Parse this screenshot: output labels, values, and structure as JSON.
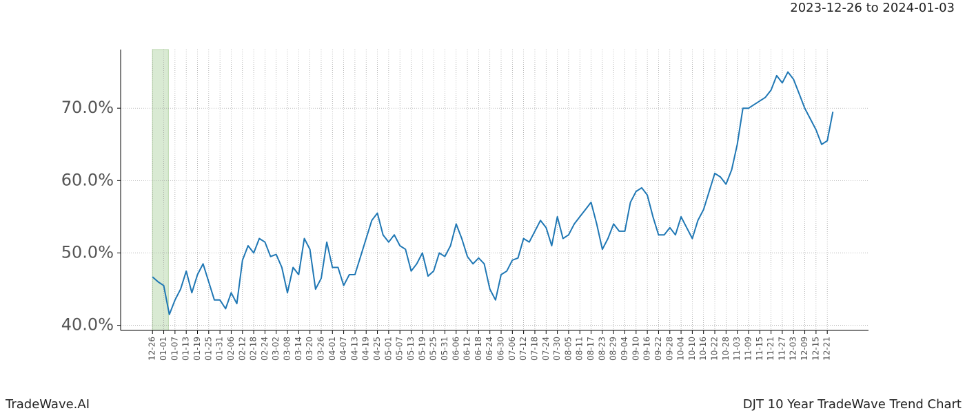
{
  "chart_data": {
    "type": "line",
    "subtitle": "2023-12-26 to 2024-01-03",
    "footer_left": "TradeWave.AI",
    "title": "DJT 10 Year TradeWave Trend Chart",
    "highlight_x": [
      0,
      8.5
    ],
    "highlight_color": "#d9ead3",
    "grid": true,
    "xlim": [
      -17,
      382
    ],
    "ylim": [
      39.3,
      78.1
    ],
    "yticks": [
      {
        "value": 40,
        "label": "40.0%"
      },
      {
        "value": 50,
        "label": "50.0%"
      },
      {
        "value": 60,
        "label": "60.0%"
      },
      {
        "value": 70,
        "label": "70.0%"
      }
    ],
    "xticks": [
      {
        "value": 0,
        "label": "12-26"
      },
      {
        "value": 6,
        "label": "01-01"
      },
      {
        "value": 12,
        "label": "01-07"
      },
      {
        "value": 18,
        "label": "01-13"
      },
      {
        "value": 24,
        "label": "01-19"
      },
      {
        "value": 30,
        "label": "01-25"
      },
      {
        "value": 36,
        "label": "01-31"
      },
      {
        "value": 42,
        "label": "02-06"
      },
      {
        "value": 48,
        "label": "02-12"
      },
      {
        "value": 54,
        "label": "02-18"
      },
      {
        "value": 60,
        "label": "02-24"
      },
      {
        "value": 66,
        "label": "03-02"
      },
      {
        "value": 72,
        "label": "03-08"
      },
      {
        "value": 78,
        "label": "03-14"
      },
      {
        "value": 84,
        "label": "03-20"
      },
      {
        "value": 90,
        "label": "03-26"
      },
      {
        "value": 96,
        "label": "04-01"
      },
      {
        "value": 102,
        "label": "04-07"
      },
      {
        "value": 108,
        "label": "04-13"
      },
      {
        "value": 114,
        "label": "04-19"
      },
      {
        "value": 120,
        "label": "04-25"
      },
      {
        "value": 126,
        "label": "05-01"
      },
      {
        "value": 132,
        "label": "05-07"
      },
      {
        "value": 138,
        "label": "05-13"
      },
      {
        "value": 144,
        "label": "05-19"
      },
      {
        "value": 150,
        "label": "05-25"
      },
      {
        "value": 156,
        "label": "05-31"
      },
      {
        "value": 162,
        "label": "06-06"
      },
      {
        "value": 168,
        "label": "06-12"
      },
      {
        "value": 174,
        "label": "06-18"
      },
      {
        "value": 180,
        "label": "06-24"
      },
      {
        "value": 186,
        "label": "06-30"
      },
      {
        "value": 192,
        "label": "07-06"
      },
      {
        "value": 198,
        "label": "07-12"
      },
      {
        "value": 204,
        "label": "07-18"
      },
      {
        "value": 210,
        "label": "07-24"
      },
      {
        "value": 216,
        "label": "07-30"
      },
      {
        "value": 222,
        "label": "08-05"
      },
      {
        "value": 228,
        "label": "08-11"
      },
      {
        "value": 234,
        "label": "08-17"
      },
      {
        "value": 240,
        "label": "08-23"
      },
      {
        "value": 246,
        "label": "08-29"
      },
      {
        "value": 252,
        "label": "09-04"
      },
      {
        "value": 258,
        "label": "09-10"
      },
      {
        "value": 264,
        "label": "09-16"
      },
      {
        "value": 270,
        "label": "09-22"
      },
      {
        "value": 276,
        "label": "09-28"
      },
      {
        "value": 282,
        "label": "10-04"
      },
      {
        "value": 288,
        "label": "10-10"
      },
      {
        "value": 294,
        "label": "10-16"
      },
      {
        "value": 300,
        "label": "10-22"
      },
      {
        "value": 306,
        "label": "10-28"
      },
      {
        "value": 312,
        "label": "11-03"
      },
      {
        "value": 318,
        "label": "11-09"
      },
      {
        "value": 324,
        "label": "11-15"
      },
      {
        "value": 330,
        "label": "11-21"
      },
      {
        "value": 336,
        "label": "11-27"
      },
      {
        "value": 342,
        "label": "12-03"
      },
      {
        "value": 348,
        "label": "12-09"
      },
      {
        "value": 354,
        "label": "12-15"
      },
      {
        "value": 360,
        "label": "12-21"
      }
    ],
    "series": [
      {
        "color": "#1f77b4",
        "x": [
          0,
          3,
          6,
          9,
          12,
          15,
          18,
          21,
          24,
          27,
          30,
          33,
          36,
          39,
          42,
          45,
          48,
          51,
          54,
          57,
          60,
          63,
          66,
          69,
          72,
          75,
          78,
          81,
          84,
          87,
          90,
          93,
          96,
          99,
          102,
          105,
          108,
          111,
          114,
          117,
          120,
          123,
          126,
          129,
          132,
          135,
          138,
          141,
          144,
          147,
          150,
          153,
          156,
          159,
          162,
          165,
          168,
          171,
          174,
          177,
          180,
          183,
          186,
          189,
          192,
          195,
          198,
          201,
          204,
          207,
          210,
          213,
          216,
          219,
          222,
          225,
          228,
          231,
          234,
          237,
          240,
          243,
          246,
          249,
          252,
          255,
          258,
          261,
          264,
          267,
          270,
          273,
          276,
          279,
          282,
          285,
          288,
          291,
          294,
          297,
          300,
          303,
          306,
          309,
          312,
          315,
          318,
          321,
          324,
          327,
          330,
          333,
          336,
          339,
          342,
          345,
          348,
          351,
          354,
          357,
          360,
          363
        ],
        "values": [
          46.7,
          46.0,
          45.5,
          41.5,
          43.5,
          45,
          47.5,
          44.5,
          47,
          48.5,
          46,
          43.5,
          43.5,
          42.3,
          44.5,
          43,
          49,
          51,
          50,
          52,
          51.5,
          49.5,
          49.8,
          48,
          44.5,
          48,
          47,
          52,
          50.5,
          45,
          46.5,
          51.5,
          48,
          48,
          45.5,
          47,
          47,
          49.5,
          52,
          54.5,
          55.5,
          52.5,
          51.5,
          52.5,
          51,
          50.5,
          47.5,
          48.5,
          50,
          46.8,
          47.5,
          50,
          49.5,
          51,
          54,
          52,
          49.5,
          48.5,
          49.3,
          48.5,
          45,
          43.5,
          47,
          47.5,
          49,
          49.3,
          52,
          51.5,
          53,
          54.5,
          53.5,
          51,
          55,
          52,
          52.5,
          54,
          55,
          56,
          57,
          54,
          50.5,
          52,
          54,
          53,
          53,
          57,
          58.5,
          59,
          58,
          55,
          52.5,
          52.5,
          53.5,
          52.5,
          55,
          53.5,
          52,
          54.5,
          56,
          58.5,
          61,
          60.5,
          59.5,
          61.5,
          65,
          70,
          70,
          70.5,
          71,
          71.5,
          72.5,
          74.5,
          73.5,
          75,
          74,
          72,
          70,
          68.5,
          67,
          65,
          65.5,
          69.5
        ]
      }
    ]
  }
}
